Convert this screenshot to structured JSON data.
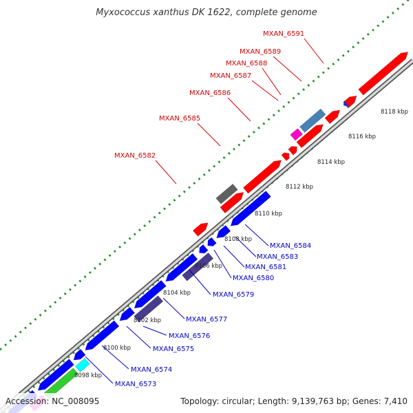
{
  "title": "Myxococcus xanthus DK 1622, complete genome",
  "footer": {
    "accession": "Accession: NC_008095",
    "summary": "Topology: circular; Length: 9,139,763 bp; Genes: 7,410"
  },
  "colors": {
    "forward_strand": "#ff0000",
    "reverse_strand": "#0000ff",
    "grey_feature": "#606060",
    "steelblue_feature": "#4682b4",
    "slate_feature": "#483d8b",
    "magenta_feature": "#ff00cc",
    "cyan_feature": "#00ffff",
    "green_feature": "#33cc33",
    "dotted_ruler": "#228b22",
    "backbone": "#aaaaaa"
  },
  "ticks": [
    "8098 kbp",
    "8100 kbp",
    "8102 kbp",
    "8104 kbp",
    "8106 kbp",
    "8108 kbp",
    "8110 kbp",
    "8112 kbp",
    "8114 kbp",
    "8116 kbp",
    "8118 kbp"
  ],
  "forward_labels": [
    "MXAN_6591",
    "MXAN_6589",
    "MXAN_6588",
    "MXAN_6587",
    "MXAN_6586",
    "MXAN_6585",
    "MXAN_6582"
  ],
  "reverse_labels": [
    "MXAN_6584",
    "MXAN_6583",
    "MXAN_6581",
    "MXAN_6580",
    "MXAN_6579",
    "MXAN_6577",
    "MXAN_6576",
    "MXAN_6575",
    "MXAN_6574",
    "MXAN_6573"
  ]
}
